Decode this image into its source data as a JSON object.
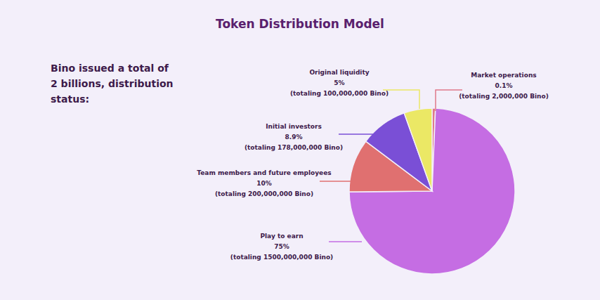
{
  "chart_data": {
    "type": "pie",
    "title": "Token Distribution Model",
    "subtitle": "Bino issued a total of 2 billions, distribution status:",
    "categories": [
      "Market operations",
      "Play to earn",
      "Team members and future employees",
      "Initial investors",
      "Original liquidity"
    ],
    "values": [
      0.1,
      75,
      10,
      8.9,
      5
    ],
    "value_labels": [
      "0.1%",
      "75%",
      "10%",
      "8.9%",
      "5%"
    ],
    "annotations": [
      "(totaling 2,000,000 Bino)",
      "(totaling 1500,000,000 Bino)",
      "(totaling 200,000,000 Bino)",
      "(totaling 178,000,000 Bino)",
      "(totaling 100,000,000 Bino)"
    ],
    "colors": [
      "#e07a8a",
      "#c56de3",
      "#e07070",
      "#7a4fd6",
      "#ebe865"
    ],
    "data_labels": true
  }
}
